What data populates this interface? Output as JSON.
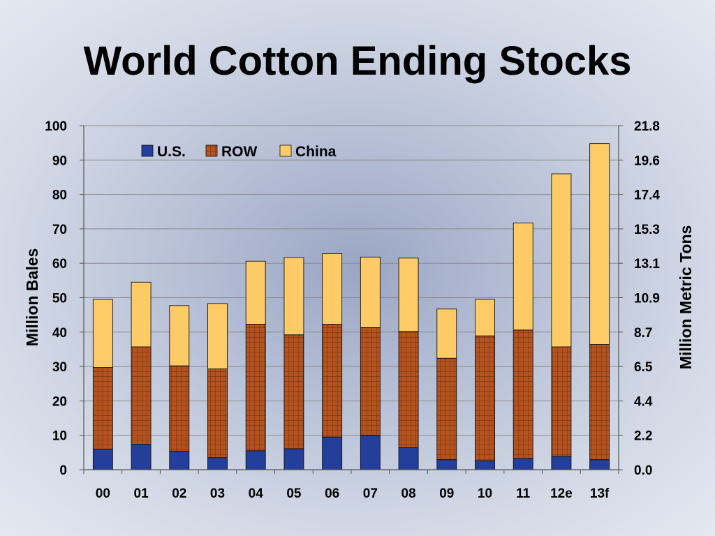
{
  "slide": {
    "title": "World Cotton Ending Stocks"
  },
  "colors": {
    "us": "#233f9b",
    "row": "#b4531f",
    "row_grid": "#6a2a0a",
    "china": "#fecb66",
    "gridline": "#8a8a8a",
    "axis": "#555555"
  },
  "chart_data": {
    "type": "bar",
    "stacked": true,
    "title": "World Cotton Ending Stocks",
    "categories": [
      "00",
      "01",
      "02",
      "03",
      "04",
      "05",
      "06",
      "07",
      "08",
      "09",
      "10",
      "11",
      "12e",
      "13f"
    ],
    "series": [
      {
        "name": "U.S.",
        "color": "#233f9b",
        "values": [
          6.0,
          7.4,
          5.4,
          3.5,
          5.5,
          6.1,
          9.5,
          10.0,
          6.4,
          2.9,
          2.6,
          3.3,
          3.9,
          2.9
        ]
      },
      {
        "name": "ROW",
        "color": "#b4531f",
        "values": [
          23.7,
          28.3,
          24.8,
          25.8,
          36.8,
          33.1,
          32.8,
          31.3,
          33.8,
          29.5,
          36.3,
          37.3,
          31.8,
          33.5
        ]
      },
      {
        "name": "China",
        "color": "#fecb66",
        "values": [
          19.8,
          18.8,
          17.5,
          19.0,
          18.3,
          22.5,
          20.5,
          20.5,
          21.3,
          14.3,
          10.6,
          31.1,
          50.3,
          58.4
        ]
      }
    ],
    "ylabel": "Million Bales",
    "ylim": [
      0,
      100
    ],
    "yticks": [
      "0",
      "10",
      "20",
      "30",
      "40",
      "50",
      "60",
      "70",
      "80",
      "90",
      "100"
    ],
    "y2label": "Million Metric Tons",
    "y2ticks": [
      "0.0",
      "2.2",
      "4.4",
      "6.5",
      "8.7",
      "10.9",
      "13.1",
      "15.3",
      "17.4",
      "19.6",
      "21.8"
    ],
    "grid": true,
    "legend_position": "top-left"
  }
}
